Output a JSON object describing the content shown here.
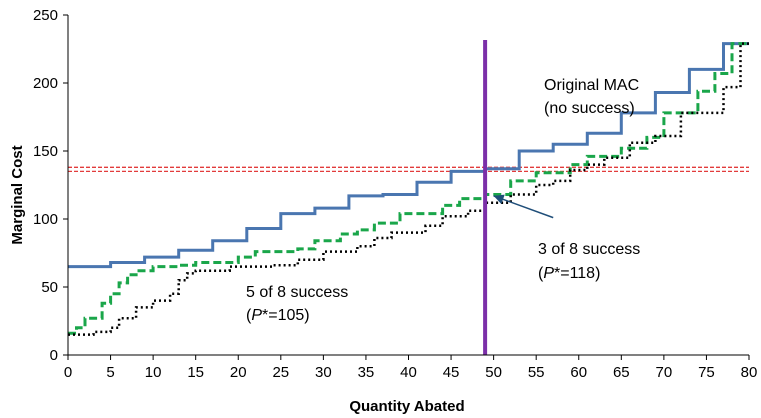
{
  "chart_data": {
    "type": "line",
    "title": "",
    "xlabel": "Quantity Abated",
    "ylabel": "Marginal Cost",
    "xlim": [
      0,
      80
    ],
    "ylim": [
      0,
      250
    ],
    "xticks": [
      0,
      5,
      10,
      15,
      20,
      25,
      30,
      35,
      40,
      45,
      50,
      55,
      60,
      65,
      70,
      75,
      80
    ],
    "yticks": [
      0,
      50,
      100,
      150,
      200,
      250
    ],
    "grid": false,
    "legend": "none",
    "colors": {
      "original_mac": "#4a76b0",
      "five_of_eight": "#1aa64a",
      "three_of_eight": "#000000",
      "vertical_line": "#7b2fa8",
      "horizontal_lines": "#e23c3c",
      "arrow": "#1f4e79"
    },
    "series": [
      {
        "style": "solid",
        "points": [
          [
            0,
            65
          ],
          [
            5,
            65
          ],
          [
            5,
            68
          ],
          [
            9,
            68
          ],
          [
            9,
            72
          ],
          [
            13,
            72
          ],
          [
            13,
            77
          ],
          [
            17,
            77
          ],
          [
            17,
            84
          ],
          [
            21,
            84
          ],
          [
            21,
            93
          ],
          [
            25,
            93
          ],
          [
            25,
            104
          ],
          [
            29,
            104
          ],
          [
            29,
            108
          ],
          [
            33,
            108
          ],
          [
            33,
            117
          ],
          [
            37,
            117
          ],
          [
            37,
            118
          ],
          [
            41,
            118
          ],
          [
            41,
            127
          ],
          [
            45,
            127
          ],
          [
            45,
            135
          ],
          [
            49,
            135
          ],
          [
            49,
            137
          ],
          [
            53,
            137
          ],
          [
            53,
            150
          ],
          [
            57,
            150
          ],
          [
            57,
            155
          ],
          [
            61,
            155
          ],
          [
            61,
            163
          ],
          [
            65,
            163
          ],
          [
            65,
            178
          ],
          [
            69,
            178
          ],
          [
            69,
            193
          ],
          [
            73,
            193
          ],
          [
            73,
            210
          ],
          [
            77,
            210
          ],
          [
            77,
            229
          ],
          [
            80,
            229
          ]
        ]
      },
      {
        "style": "dashed",
        "points": [
          [
            0,
            16
          ],
          [
            1,
            16
          ],
          [
            1,
            20
          ],
          [
            2,
            20
          ],
          [
            2,
            27
          ],
          [
            4,
            27
          ],
          [
            4,
            38
          ],
          [
            5,
            38
          ],
          [
            5,
            45
          ],
          [
            6,
            45
          ],
          [
            6,
            53
          ],
          [
            7,
            53
          ],
          [
            7,
            59
          ],
          [
            8,
            59
          ],
          [
            8,
            62
          ],
          [
            10,
            62
          ],
          [
            10,
            65
          ],
          [
            13,
            65
          ],
          [
            13,
            66
          ],
          [
            15,
            66
          ],
          [
            15,
            68
          ],
          [
            20,
            68
          ],
          [
            20,
            72
          ],
          [
            22,
            72
          ],
          [
            22,
            76
          ],
          [
            27,
            76
          ],
          [
            27,
            78
          ],
          [
            29,
            78
          ],
          [
            29,
            84
          ],
          [
            32,
            84
          ],
          [
            32,
            89
          ],
          [
            34,
            89
          ],
          [
            34,
            92
          ],
          [
            36,
            92
          ],
          [
            36,
            97
          ],
          [
            39,
            97
          ],
          [
            39,
            104
          ],
          [
            44,
            104
          ],
          [
            44,
            110
          ],
          [
            46,
            110
          ],
          [
            46,
            115
          ],
          [
            49,
            115
          ],
          [
            49,
            118
          ],
          [
            52,
            118
          ],
          [
            52,
            128
          ],
          [
            55,
            128
          ],
          [
            55,
            134
          ],
          [
            59,
            134
          ],
          [
            59,
            140
          ],
          [
            61,
            140
          ],
          [
            61,
            146
          ],
          [
            65,
            146
          ],
          [
            65,
            152
          ],
          [
            68,
            152
          ],
          [
            68,
            160
          ],
          [
            70,
            160
          ],
          [
            70,
            178
          ],
          [
            74,
            178
          ],
          [
            74,
            194
          ],
          [
            76,
            194
          ],
          [
            76,
            207
          ],
          [
            78,
            207
          ],
          [
            78,
            229
          ],
          [
            80,
            229
          ]
        ]
      },
      {
        "style": "dotted",
        "points": [
          [
            0,
            15
          ],
          [
            3,
            15
          ],
          [
            3,
            17
          ],
          [
            5,
            17
          ],
          [
            5,
            20
          ],
          [
            6,
            20
          ],
          [
            6,
            27
          ],
          [
            8,
            27
          ],
          [
            8,
            35
          ],
          [
            10,
            35
          ],
          [
            10,
            40
          ],
          [
            12,
            40
          ],
          [
            12,
            45
          ],
          [
            13,
            45
          ],
          [
            13,
            55
          ],
          [
            14,
            55
          ],
          [
            14,
            60
          ],
          [
            15,
            60
          ],
          [
            15,
            62
          ],
          [
            19,
            62
          ],
          [
            19,
            65
          ],
          [
            24,
            65
          ],
          [
            24,
            66
          ],
          [
            27,
            66
          ],
          [
            27,
            70
          ],
          [
            30,
            70
          ],
          [
            30,
            76
          ],
          [
            34,
            76
          ],
          [
            34,
            80
          ],
          [
            36,
            80
          ],
          [
            36,
            86
          ],
          [
            38,
            86
          ],
          [
            38,
            90
          ],
          [
            42,
            90
          ],
          [
            42,
            95
          ],
          [
            44,
            95
          ],
          [
            44,
            102
          ],
          [
            47,
            102
          ],
          [
            47,
            106
          ],
          [
            49,
            106
          ],
          [
            49,
            112
          ],
          [
            52,
            112
          ],
          [
            52,
            118
          ],
          [
            55,
            118
          ],
          [
            55,
            125
          ],
          [
            57,
            125
          ],
          [
            57,
            128
          ],
          [
            59,
            128
          ],
          [
            59,
            136
          ],
          [
            61,
            136
          ],
          [
            61,
            140
          ],
          [
            63,
            140
          ],
          [
            63,
            145
          ],
          [
            66,
            145
          ],
          [
            66,
            156
          ],
          [
            69,
            156
          ],
          [
            69,
            161
          ],
          [
            72,
            161
          ],
          [
            72,
            178
          ],
          [
            77,
            178
          ],
          [
            77,
            197
          ],
          [
            79,
            197
          ],
          [
            79,
            229
          ],
          [
            80,
            229
          ]
        ]
      }
    ],
    "reference_lines": {
      "vertical_x": 49,
      "horizontal_y": [
        135,
        138
      ]
    },
    "annotations": {
      "original_mac_line1": "Original MAC",
      "original_mac_line2": "(no success)",
      "three_of_eight_line1": "3 of 8 success",
      "three_of_eight_line2_prefix": "(",
      "three_of_eight_line2_p": "P",
      "three_of_eight_line2_suffix": "*=118)",
      "five_of_eight_line1": "5 of 8 success",
      "five_of_eight_line2_prefix": "(",
      "five_of_eight_line2_p": "P",
      "five_of_eight_line2_suffix": "*=105)"
    },
    "arrow": {
      "from": [
        57,
        101
      ],
      "to": [
        50,
        117
      ]
    }
  }
}
